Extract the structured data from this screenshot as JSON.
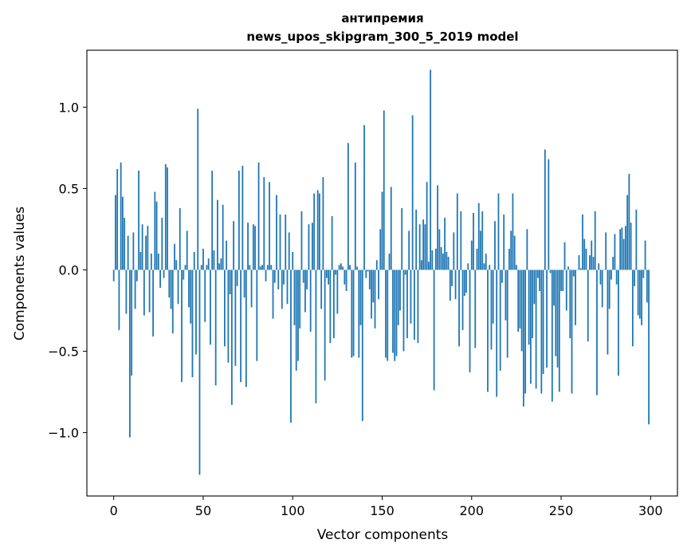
{
  "chart_data": {
    "type": "bar",
    "title": "антипремия",
    "subtitle": "news_upos_skipgram_300_5_2019 model",
    "xlabel": "Vector components",
    "ylabel": "Components values",
    "xlim": [
      -15,
      315
    ],
    "ylim": [
      -1.39,
      1.35
    ],
    "xticks": [
      0,
      50,
      100,
      150,
      200,
      250,
      300
    ],
    "yticks": [
      -1.0,
      -0.5,
      0.0,
      0.5,
      1.0
    ],
    "ytick_labels": [
      "−1.0",
      "−0.5",
      "0.0",
      "0.5",
      "1.0"
    ],
    "grid": false,
    "bar_color": "#1f77b4",
    "values": [
      -0.07,
      0.46,
      0.62,
      -0.37,
      0.66,
      0.45,
      0.32,
      -0.27,
      0.21,
      -1.03,
      -0.65,
      0.23,
      -0.24,
      -0.07,
      0.61,
      0.11,
      0.28,
      -0.28,
      0.21,
      0.27,
      -0.26,
      0.1,
      -0.41,
      0.48,
      0.42,
      0.1,
      -0.11,
      0.32,
      -0.05,
      0.65,
      0.63,
      -0.17,
      -0.24,
      -0.39,
      0.16,
      0.06,
      -0.21,
      0.38,
      -0.69,
      -0.06,
      0.03,
      0.24,
      -0.23,
      -0.33,
      -0.66,
      0.11,
      -0.52,
      0.99,
      -1.26,
      0.03,
      0.13,
      -0.32,
      0.03,
      0.07,
      -0.46,
      0.61,
      0.12,
      -0.71,
      0.43,
      0.04,
      0.07,
      0.4,
      -0.47,
      0.18,
      -0.57,
      -0.15,
      -0.83,
      0.3,
      -0.59,
      -0.1,
      0.61,
      -0.69,
      0.64,
      -0.17,
      -0.72,
      0.29,
      0.03,
      -0.23,
      0.28,
      0.27,
      -0.56,
      0.66,
      0.02,
      0.03,
      0.57,
      -0.07,
      0.03,
      0.54,
      0.03,
      -0.3,
      -0.08,
      0.46,
      -0.12,
      0.34,
      -0.24,
      -0.09,
      0.34,
      -0.21,
      0.23,
      -0.94,
      0.11,
      -0.34,
      -0.62,
      -0.56,
      -0.36,
      0.36,
      -0.08,
      -0.26,
      -0.12,
      0.28,
      -0.38,
      0.29,
      0.47,
      -0.82,
      0.49,
      0.47,
      -0.24,
      0.57,
      -0.68,
      -0.05,
      -0.09,
      -0.45,
      0.33,
      -0.42,
      -0.03,
      -0.27,
      0.03,
      0.04,
      0.02,
      -0.09,
      -0.13,
      0.78,
      0.03,
      -0.54,
      -0.53,
      0.66,
      0.02,
      -0.54,
      -0.34,
      -0.93,
      0.89,
      -0.05,
      -0.01,
      -0.12,
      -0.3,
      -0.2,
      -0.36,
      0.06,
      -0.18,
      0.25,
      0.48,
      0.98,
      -0.54,
      -0.56,
      0.1,
      0.51,
      -0.51,
      -0.56,
      -0.53,
      -0.34,
      -0.25,
      0.38,
      -0.5,
      -0.03,
      -0.42,
      0.24,
      -0.33,
      0.95,
      -0.43,
      0.37,
      -0.45,
      0.28,
      0.06,
      0.31,
      0.28,
      0.54,
      0.05,
      1.23,
      0.12,
      -0.74,
      0.13,
      0.52,
      0.25,
      0.14,
      0.1,
      0.32,
      0.11,
      0.08,
      -0.19,
      -0.1,
      0.23,
      -0.18,
      0.47,
      -0.47,
      0.36,
      -0.37,
      -0.16,
      -0.14,
      0.04,
      -0.63,
      0.18,
      0.35,
      -0.48,
      0.13,
      0.41,
      0.24,
      0.36,
      0.04,
      0.1,
      -0.75,
      0.03,
      -0.49,
      -0.33,
      0.3,
      -0.78,
      0.47,
      -0.62,
      -0.08,
      0.34,
      -0.31,
      -0.54,
      0.13,
      0.24,
      0.47,
      0.21,
      0.03,
      -0.38,
      -0.36,
      -0.5,
      -0.84,
      -0.76,
      0.25,
      -0.46,
      -0.7,
      -0.42,
      -0.21,
      -0.73,
      -0.05,
      -0.13,
      -0.76,
      -0.64,
      0.74,
      -0.6,
      0.68,
      -0.02,
      -0.81,
      -0.22,
      -0.53,
      -0.6,
      -0.75,
      -0.13,
      -0.13,
      0.17,
      -0.25,
      0.02,
      -0.42,
      -0.76,
      -0.04,
      -0.34,
      0.0,
      0.09,
      0.01,
      0.34,
      0.19,
      0.13,
      -0.44,
      0.09,
      0.18,
      0.08,
      0.36,
      -0.77,
      0.04,
      -0.09,
      -0.23,
      0.0,
      0.23,
      -0.52,
      -0.24,
      -0.06,
      0.08,
      0.22,
      -0.09,
      -0.65,
      0.25,
      0.26,
      0.19,
      0.27,
      0.46,
      0.59,
      0.29,
      -0.47,
      -0.1,
      0.37,
      -0.28,
      -0.3,
      -0.34,
      -0.05,
      0.18,
      -0.2,
      -0.95
    ]
  }
}
